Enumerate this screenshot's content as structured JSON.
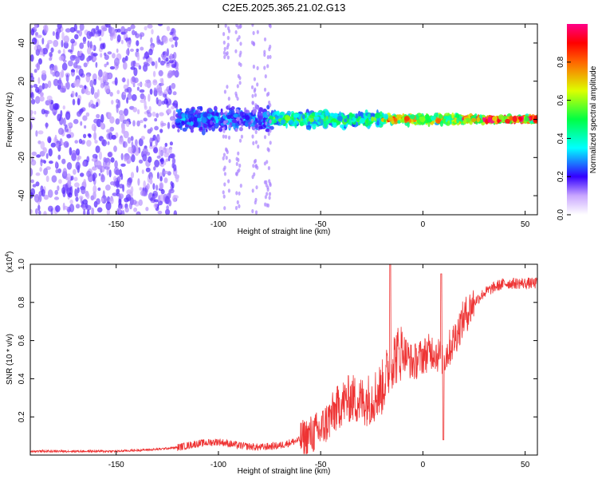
{
  "title": "C2E5.2025.365.21.02.G13",
  "chart_data": [
    {
      "type": "heatmap",
      "xlabel": "Height of straight line (km)",
      "ylabel": "Frequency (Hz)",
      "xlim": [
        -192,
        56
      ],
      "ylim": [
        -50,
        50
      ],
      "x_ticks": [
        -150,
        -100,
        -50,
        0,
        50
      ],
      "y_ticks": [
        -40,
        -20,
        0,
        20,
        40
      ],
      "colorbar": {
        "label": "Normalized spectral amplitude",
        "range": [
          0,
          1
        ],
        "ticks": [
          0.0,
          0.2,
          0.4,
          0.6,
          0.8
        ]
      },
      "regions": [
        {
          "x_range": [
            -192,
            -120
          ],
          "freq_spread": 50,
          "amplitude": 0.15
        },
        {
          "x_range": [
            -120,
            -75
          ],
          "freq_spread": 8,
          "amplitude": 0.3
        },
        {
          "x_range": [
            -75,
            -20
          ],
          "freq_spread": 5,
          "amplitude": 0.5
        },
        {
          "x_range": [
            -20,
            20
          ],
          "freq_spread": 3,
          "amplitude": 0.75
        },
        {
          "x_range": [
            20,
            56
          ],
          "freq_spread": 2,
          "amplitude": 0.95
        }
      ]
    },
    {
      "type": "line",
      "xlabel": "Height of straight line (km)",
      "ylabel": "SNR (10 * v/v)",
      "y_multiplier": "(x10",
      "y_multiplier_exp": "4",
      "y_multiplier_close": ")",
      "xlim": [
        -192,
        56
      ],
      "ylim": [
        0,
        1.0
      ],
      "x_ticks": [
        -150,
        -100,
        -50,
        0,
        50
      ],
      "y_ticks": [
        0.2,
        0.4,
        0.6,
        0.8,
        1.0
      ],
      "line_color": "#ee3333",
      "series": [
        {
          "x": [
            -192,
            -170,
            -150,
            -130,
            -120,
            -110,
            -100,
            -90,
            -80,
            -70,
            -60,
            -50,
            -45,
            -40,
            -35,
            -30,
            -25,
            -20,
            -15,
            -10,
            -5,
            0,
            5,
            10,
            15,
            20,
            25,
            30,
            35,
            40,
            45,
            50,
            56
          ],
          "y": [
            0.02,
            0.02,
            0.02,
            0.03,
            0.04,
            0.06,
            0.07,
            0.05,
            0.04,
            0.05,
            0.08,
            0.13,
            0.2,
            0.27,
            0.3,
            0.28,
            0.3,
            0.35,
            0.5,
            0.55,
            0.48,
            0.52,
            0.55,
            0.5,
            0.6,
            0.72,
            0.8,
            0.85,
            0.88,
            0.9,
            0.9,
            0.9,
            0.9
          ]
        }
      ],
      "spikes": [
        {
          "x": -16,
          "y": 1.0
        },
        {
          "x": 9,
          "y": 0.95
        },
        {
          "x": 10,
          "y": 0.08
        }
      ]
    }
  ]
}
